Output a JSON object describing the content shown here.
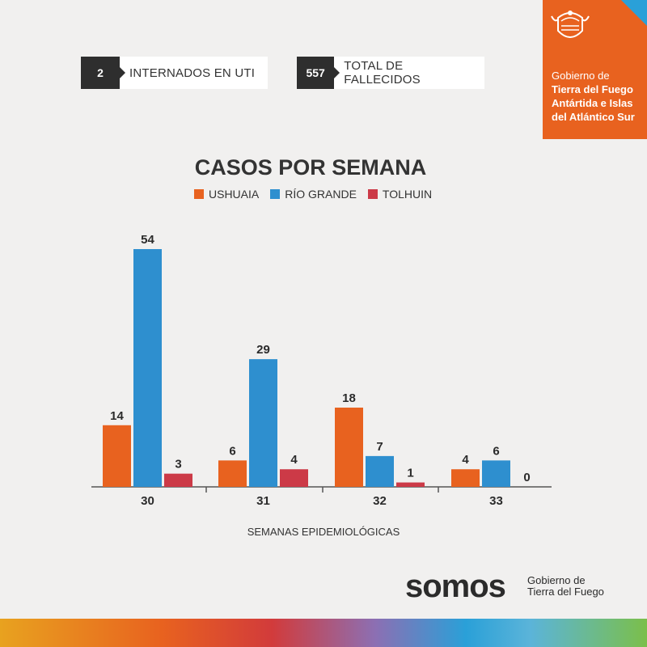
{
  "stats": [
    {
      "value": "2",
      "label": "INTERNADOS EN UTI"
    },
    {
      "value": "557",
      "label": "TOTAL DE FALLECIDOS"
    }
  ],
  "gov_badge": {
    "line1": "Gobierno de",
    "line2": "Tierra del Fuego",
    "line3": "Antártida e Islas",
    "line4": "del Atlántico Sur",
    "color": "#e8621f",
    "icon": "crest-icon"
  },
  "chart_data": {
    "type": "bar",
    "title": "CASOS POR SEMANA",
    "xlabel": "SEMANAS EPIDEMIOLÓGICAS",
    "ylabel": "",
    "categories": [
      "30",
      "31",
      "32",
      "33"
    ],
    "series": [
      {
        "name": "USHUAIA",
        "color": "#e8621f",
        "values": [
          14,
          6,
          18,
          4
        ]
      },
      {
        "name": "RÍO GRANDE",
        "color": "#2e8fcf",
        "values": [
          54,
          29,
          7,
          6
        ]
      },
      {
        "name": "TOLHUIN",
        "color": "#cc3a47",
        "values": [
          3,
          4,
          1,
          0
        ]
      }
    ],
    "ylim": [
      0,
      54
    ],
    "legend_position": "top",
    "grid": false
  },
  "footer": {
    "brand": "somos",
    "sub_line1": "Gobierno de",
    "sub_line2": "Tierra del Fuego"
  }
}
